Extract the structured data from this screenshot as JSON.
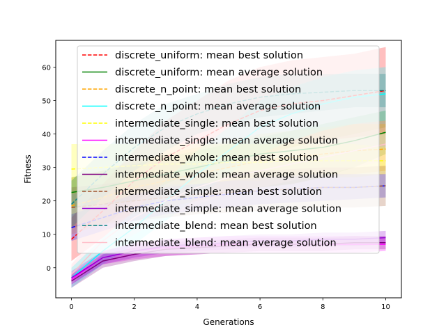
{
  "chart_data": {
    "type": "line",
    "xlabel": "Generations",
    "ylabel": "Fitness",
    "xlim": [
      -0.5,
      10.5
    ],
    "ylim": [
      -9,
      68
    ],
    "xticks": [
      0,
      2,
      4,
      6,
      8,
      10
    ],
    "yticks": [
      0,
      10,
      20,
      30,
      40,
      50,
      60
    ],
    "grid": false,
    "legend_position": "upper-left",
    "x": [
      0,
      1,
      2,
      3,
      4,
      5,
      6,
      7,
      8,
      9,
      10
    ],
    "series": [
      {
        "name": "discrete_uniform: mean best solution",
        "color": "#ff0000",
        "style": "dashed",
        "values": [
          8.5,
          17,
          26,
          33,
          38,
          43,
          47,
          49,
          50,
          51.5,
          53
        ],
        "lower": [
          2,
          9,
          17,
          22,
          26,
          30,
          33,
          36,
          38,
          39,
          40
        ],
        "upper": [
          15,
          25,
          35,
          44,
          50,
          56,
          60,
          62,
          63,
          64,
          66
        ]
      },
      {
        "name": "discrete_uniform: mean average solution",
        "color": "#008000",
        "style": "solid",
        "values": [
          22.5,
          24,
          26,
          28,
          30,
          32,
          34,
          35,
          36,
          38,
          40.5
        ],
        "lower": [
          18,
          19,
          20,
          21,
          22,
          23,
          24,
          25,
          27,
          30,
          34
        ],
        "upper": [
          27,
          29,
          31,
          33,
          35,
          37,
          39,
          41,
          43,
          45,
          47
        ]
      },
      {
        "name": "discrete_n_point: mean best solution",
        "color": "#ffa500",
        "style": "dashed",
        "values": [
          18.5,
          21,
          24,
          26,
          28,
          30,
          32,
          33,
          34,
          35,
          35.5
        ],
        "lower": [
          10,
          13,
          16,
          18,
          20,
          22,
          24,
          25,
          27,
          28,
          29
        ],
        "upper": [
          27,
          29,
          32,
          34,
          36,
          38,
          40,
          41,
          42,
          43,
          43
        ]
      },
      {
        "name": "discrete_n_point: mean average solution",
        "color": "#00ffff",
        "style": "solid",
        "values": [
          -3,
          5,
          12,
          20,
          28,
          35,
          42,
          46,
          49,
          51,
          52
        ],
        "lower": [
          -6,
          1,
          7,
          14,
          21,
          28,
          34,
          38,
          41,
          43,
          44
        ],
        "upper": [
          0,
          9,
          17,
          26,
          35,
          42,
          50,
          54,
          57,
          59,
          60
        ]
      },
      {
        "name": "intermediate_single: mean best solution",
        "color": "#ffff00",
        "style": "dashed",
        "values": [
          29.5,
          30,
          30.5,
          31,
          31,
          31.5,
          31.5,
          32,
          32,
          32,
          32
        ],
        "lower": [
          22,
          23,
          24,
          25,
          25,
          26,
          26,
          27,
          27,
          27,
          28
        ],
        "upper": [
          37,
          37,
          37,
          37,
          37,
          37,
          37,
          37,
          37,
          37,
          36
        ]
      },
      {
        "name": "intermediate_single: mean average solution",
        "color": "#ff00ff",
        "style": "solid",
        "values": [
          -3.5,
          3,
          5,
          6,
          6.5,
          7,
          7,
          7,
          7,
          7,
          7
        ],
        "lower": [
          -5,
          1,
          2.5,
          3.5,
          4,
          4.5,
          4.5,
          4.5,
          4.5,
          4.5,
          5
        ],
        "upper": [
          -2,
          5,
          7.5,
          8.5,
          9,
          9.5,
          9.5,
          9.5,
          9.5,
          9.5,
          9
        ]
      },
      {
        "name": "intermediate_whole: mean best solution",
        "color": "#0000ff",
        "style": "dashed",
        "values": [
          12,
          15,
          18,
          20,
          21,
          22,
          23,
          23.5,
          24,
          24,
          24.5
        ],
        "lower": [
          8,
          11,
          14,
          16,
          17,
          18,
          19,
          19.5,
          20,
          20.5,
          21
        ],
        "upper": [
          16,
          19,
          22,
          24,
          25,
          26,
          27,
          27.5,
          28,
          28,
          28
        ]
      },
      {
        "name": "intermediate_whole: mean average solution",
        "color": "#800080",
        "style": "solid",
        "values": [
          -4,
          2,
          4,
          5.5,
          6,
          6.5,
          7,
          7,
          7,
          7.5,
          7.5
        ],
        "lower": [
          -6,
          0,
          2,
          3.5,
          4,
          4.5,
          5,
          5,
          5,
          5.5,
          5.5
        ],
        "upper": [
          -2,
          4,
          6,
          7.5,
          8,
          8.5,
          9,
          9,
          9,
          9.5,
          9.5
        ]
      },
      {
        "name": "intermediate_simple: mean best solution",
        "color": "#a0522d",
        "style": "dashed",
        "values": [
          18,
          19,
          20,
          21,
          22,
          22.5,
          23,
          23.5,
          24,
          24,
          24.5
        ],
        "lower": [
          12,
          13,
          14,
          15,
          16,
          16.5,
          17,
          17.5,
          18,
          18,
          18.5
        ],
        "upper": [
          24,
          25,
          26,
          27,
          28,
          28.5,
          29,
          29.5,
          30,
          30,
          30.5
        ]
      },
      {
        "name": "intermediate_simple: mean average solution",
        "color": "#9400d3",
        "style": "solid",
        "values": [
          -3,
          3,
          5,
          6.5,
          7,
          7.5,
          8,
          8,
          8.5,
          8.5,
          9
        ],
        "lower": [
          -5,
          1,
          3,
          4.5,
          5,
          5.5,
          6,
          6,
          6.5,
          6.5,
          7
        ],
        "upper": [
          -1,
          5,
          7,
          8.5,
          9,
          9.5,
          10,
          10,
          10.5,
          10.5,
          11
        ]
      },
      {
        "name": "intermediate_blend: mean best solution",
        "color": "#008080",
        "style": "dashed",
        "values": [
          19,
          28,
          36,
          42,
          46,
          49,
          51,
          52,
          52.5,
          53,
          53
        ],
        "lower": [
          12,
          21,
          29,
          35,
          40,
          43,
          45,
          46,
          47,
          48,
          48
        ],
        "upper": [
          26,
          35,
          43,
          49,
          52,
          55,
          57,
          58,
          58,
          58,
          58
        ]
      },
      {
        "name": "intermediate_blend: mean average solution",
        "color": "#ffc0cb",
        "style": "solid",
        "values": [
          -2,
          8,
          15,
          20,
          24,
          27,
          29,
          31,
          33,
          35,
          37
        ],
        "lower": [
          -5,
          4,
          10,
          15,
          19,
          22,
          24,
          26,
          28,
          30,
          32
        ],
        "upper": [
          1,
          12,
          20,
          25,
          29,
          32,
          34,
          36,
          38,
          40,
          42
        ]
      }
    ]
  }
}
